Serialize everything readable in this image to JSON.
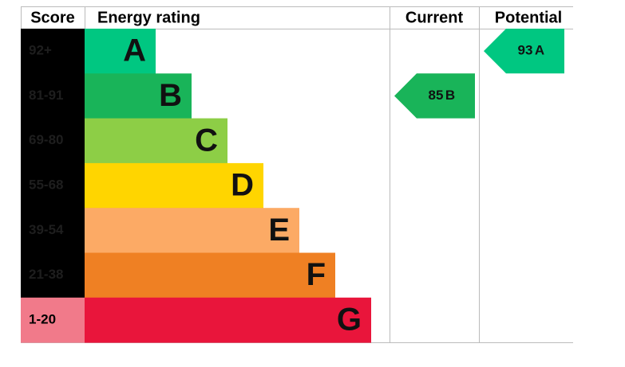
{
  "header": {
    "score": "Score",
    "rating": "Energy rating",
    "current": "Current",
    "potential": "Potential"
  },
  "bands": [
    {
      "score": "92+",
      "letter": "A",
      "color": "#00c781",
      "score_color": "#000000"
    },
    {
      "score": "81-91",
      "letter": "B",
      "color": "#19b459",
      "score_color": "#000000"
    },
    {
      "score": "69-80",
      "letter": "C",
      "color": "#8dce46",
      "score_color": "#000000"
    },
    {
      "score": "55-68",
      "letter": "D",
      "color": "#ffd500",
      "score_color": "#000000"
    },
    {
      "score": "39-54",
      "letter": "E",
      "color": "#fcaa65",
      "score_color": "#000000"
    },
    {
      "score": "21-38",
      "letter": "F",
      "color": "#ef8023",
      "score_color": "#000000"
    },
    {
      "score": "1-20",
      "letter": "G",
      "color": "#e9153b",
      "score_color": "#f17a8a"
    }
  ],
  "current": {
    "score": 85,
    "rating": "B",
    "color": "#19b459"
  },
  "potential": {
    "score": 93,
    "rating": "A",
    "color": "#00c781"
  }
}
